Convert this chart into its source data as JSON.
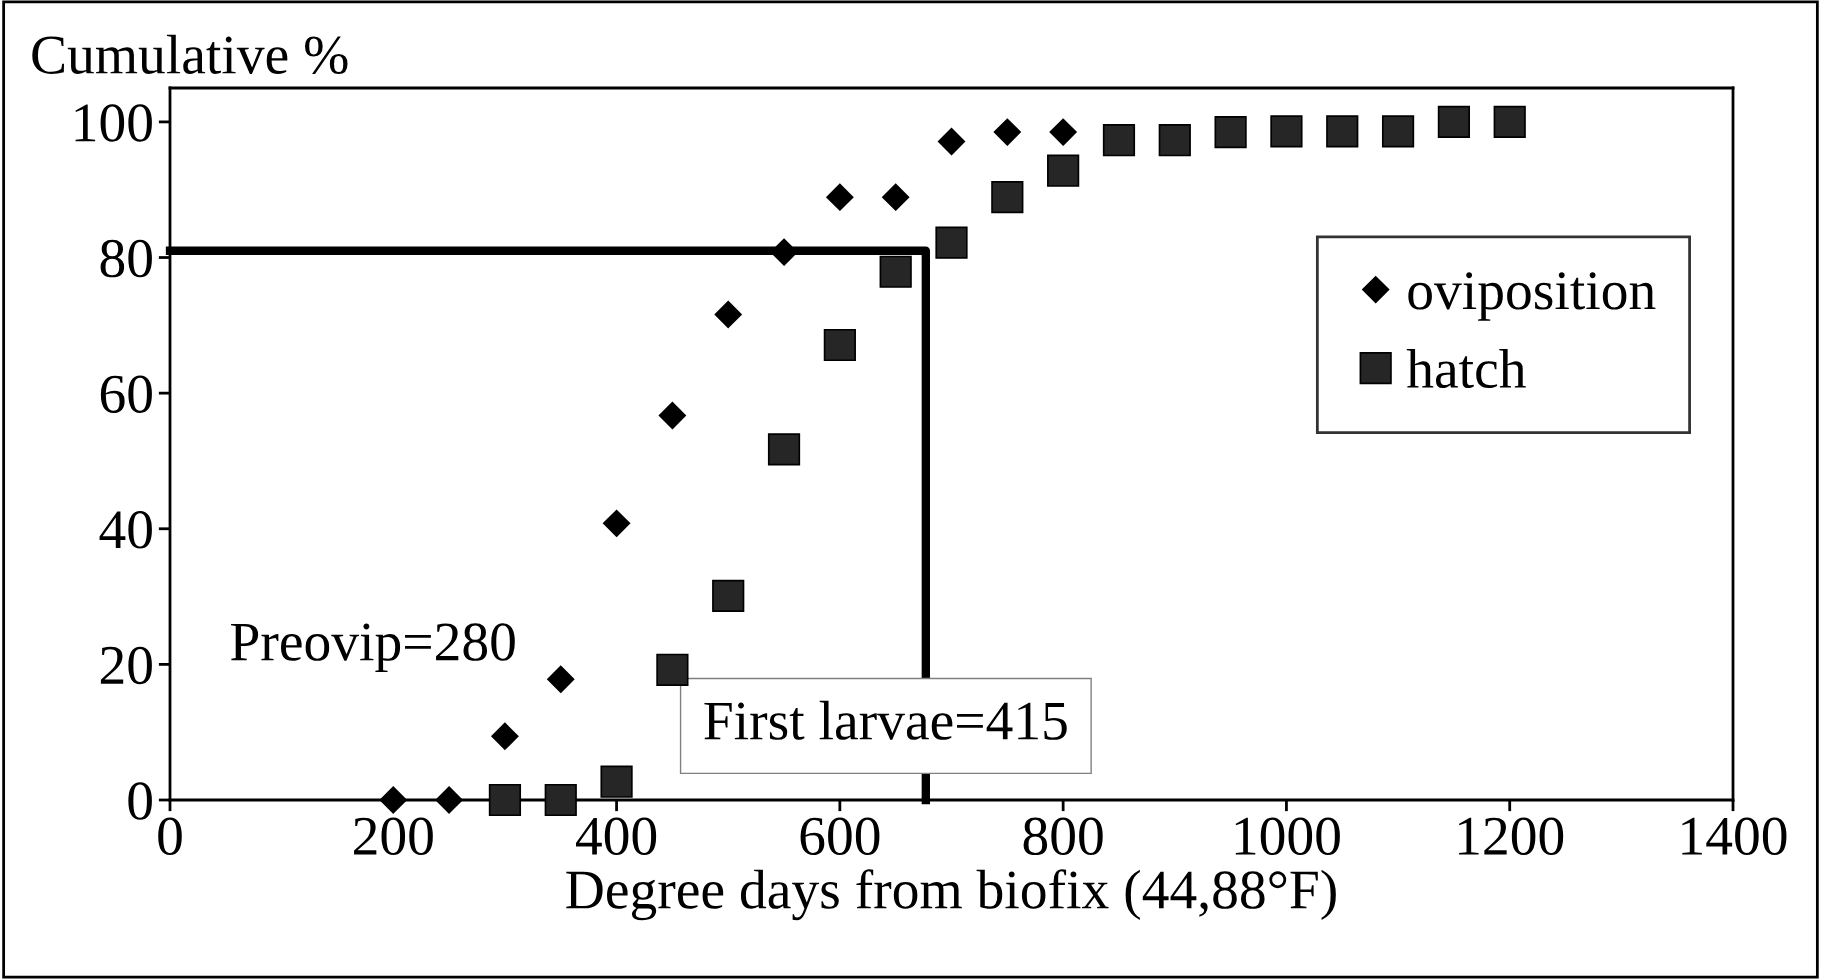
{
  "chart_data": {
    "type": "scatter",
    "xlabel": "Degree days from biofix (44,88°F)",
    "ylabel": "Cumulative %",
    "xlim": [
      0,
      1400
    ],
    "xticks": [
      0,
      200,
      400,
      600,
      800,
      1000,
      1200,
      1400
    ],
    "ylim": [
      0,
      105
    ],
    "yticks": [
      0,
      20,
      40,
      60,
      80,
      100
    ],
    "grid": false,
    "legend": "top right",
    "series": [
      {
        "name": "oviposition",
        "marker": "diamond",
        "color": "#000000",
        "x": [
          200,
          250,
          300,
          350,
          400,
          450,
          500,
          550,
          600,
          650,
          700,
          750,
          800
        ],
        "values": [
          0,
          0,
          9.4,
          17.8,
          40.8,
          56.7,
          71.6,
          80.8,
          88.9,
          88.9,
          97.1,
          98.5,
          98.5
        ]
      },
      {
        "name": "hatch",
        "marker": "square",
        "color": "#262626",
        "x": [
          300,
          350,
          400,
          450,
          500,
          550,
          600,
          650,
          700,
          750,
          800,
          850,
          900,
          950,
          1000,
          1050,
          1100,
          1150,
          1200
        ],
        "values": [
          0,
          0,
          2.7,
          19.2,
          30.1,
          51.7,
          67.1,
          77.9,
          82.2,
          88.9,
          92.8,
          97.3,
          97.3,
          98.5,
          98.6,
          98.6,
          98.6,
          100,
          100
        ]
      },
      {
        "type": "line",
        "marker": "none",
        "color": "#000000",
        "x": [
          0,
          677,
          677
        ],
        "values": [
          81,
          81,
          0
        ]
      }
    ],
    "annotations": [
      "Preovip=280",
      "First larvae=415"
    ]
  }
}
